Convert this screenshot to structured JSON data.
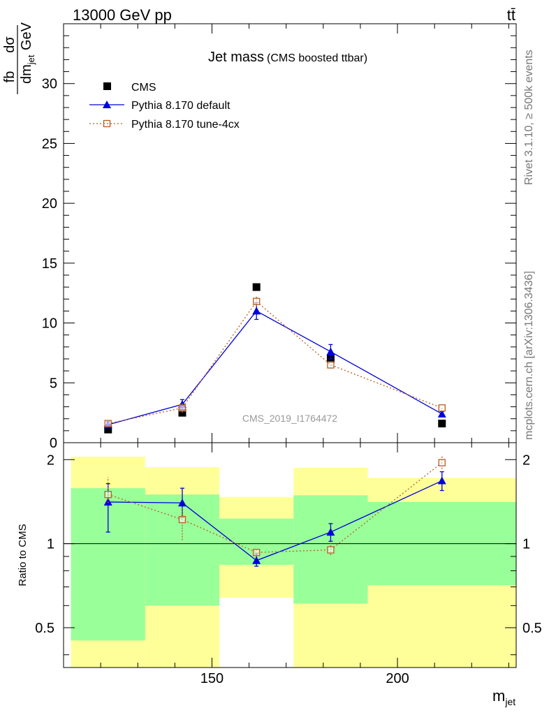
{
  "header": {
    "energy_label": "13000 GeV pp",
    "process_label": "tt̄"
  },
  "side_labels": {
    "rivet": "Rivet 3.1.10, ≥ 500k events",
    "mcplots": "mcplots.cern.ch [arXiv:1306.3436]"
  },
  "chart_data": [
    {
      "type": "line",
      "panel": "main",
      "title": "Jet mass",
      "subtitle": "(CMS boosted ttbar)",
      "ylabel": {
        "num": "dσ",
        "num_unit": "fb",
        "den": "dm",
        "den_sub": "jet",
        "den_unit": "GeV"
      },
      "watermark": "CMS_2019_I1764472",
      "x": [
        122,
        142,
        162,
        182,
        212
      ],
      "xlim": [
        110,
        232
      ],
      "ylim": [
        0,
        35
      ],
      "yticks": [
        "0",
        "5",
        "10",
        "15",
        "20",
        "25",
        "30"
      ],
      "legend_position": "top-left",
      "series": [
        {
          "name": "CMS",
          "marker": "square",
          "color": "#000000",
          "values": [
            1.1,
            2.5,
            13.0,
            7.0,
            1.6
          ]
        },
        {
          "name": "Pythia 8.170 default",
          "marker": "triangle",
          "color": "#0000dd",
          "line": "solid",
          "values": [
            1.5,
            3.2,
            11.0,
            7.6,
            2.4
          ],
          "err": [
            0.25,
            0.4,
            0.7,
            0.6,
            0.2
          ]
        },
        {
          "name": "Pythia 8.170 tune-4cx",
          "marker": "open-square",
          "color": "#b85c1e",
          "line": "dotted",
          "values": [
            1.6,
            2.9,
            11.8,
            6.5,
            2.9
          ],
          "err": [
            0.1,
            0.4,
            0.4,
            0.3,
            0.1
          ]
        }
      ]
    },
    {
      "type": "line",
      "panel": "ratio",
      "ylabel": "Ratio to CMS",
      "xlabel": "m",
      "xlabel_sub": "jet",
      "xticks": [
        "150",
        "200"
      ],
      "yticks": [
        "0.5",
        "1",
        "2"
      ],
      "ylim": [
        0.36,
        2.3
      ],
      "log_y": true,
      "bins": [
        [
          112,
          132
        ],
        [
          132,
          152
        ],
        [
          152,
          172
        ],
        [
          172,
          192
        ],
        [
          192,
          232
        ]
      ],
      "band_1sigma": [
        [
          0.45,
          1.58
        ],
        [
          0.6,
          1.5
        ],
        [
          0.84,
          1.23
        ],
        [
          0.61,
          1.49
        ],
        [
          0.71,
          1.41
        ]
      ],
      "band_2sigma": [
        [
          0.33,
          2.05
        ],
        [
          0.33,
          1.88
        ],
        [
          0.64,
          1.47
        ],
        [
          0.33,
          1.87
        ],
        [
          0.33,
          1.72
        ]
      ],
      "series": [
        {
          "name": "Pythia 8.170 default",
          "values": [
            1.41,
            1.4,
            0.87,
            1.1,
            1.68
          ],
          "err_lo": [
            0.31,
            0.16,
            0.04,
            0.08,
            0.13
          ],
          "err_hi": [
            0.23,
            0.18,
            0.05,
            0.08,
            0.13
          ]
        },
        {
          "name": "Pythia 8.170 tune-4cx",
          "values": [
            1.5,
            1.22,
            0.93,
            0.95,
            1.95
          ],
          "err_lo": [
            0.1,
            0.19,
            0.03,
            0.04,
            0.1
          ],
          "err_hi": [
            0.23,
            0.13,
            0.03,
            0.07,
            0.12
          ]
        }
      ]
    }
  ]
}
